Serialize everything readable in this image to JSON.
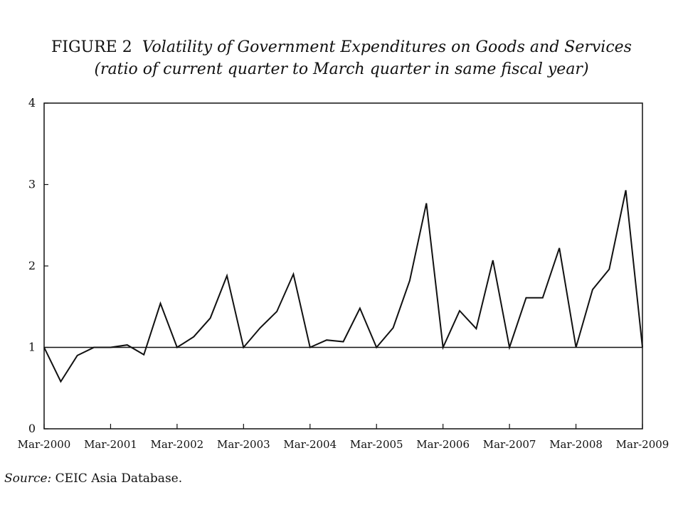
{
  "figure": {
    "label": "FIGURE 2",
    "title": "Volatility of Government Expenditures on Goods and Services",
    "subtitle": "(ratio of current quarter to March quarter in same fiscal year)"
  },
  "source": {
    "label": "Source:",
    "text": " CEIC Asia Database."
  },
  "chart_data": {
    "type": "line",
    "title": "FIGURE 2 Volatility of Government Expenditures on Goods and Services",
    "subtitle": "(ratio of current quarter to March quarter in same fiscal year)",
    "xlabel": "",
    "ylabel": "",
    "ylim": [
      0,
      4
    ],
    "yticks": [
      0,
      1,
      2,
      3,
      4
    ],
    "xtick_labels": [
      "Mar-2000",
      "Mar-2001",
      "Mar-2002",
      "Mar-2003",
      "Mar-2004",
      "Mar-2005",
      "Mar-2006",
      "Mar-2007",
      "Mar-2008",
      "Mar-2009"
    ],
    "grid": false,
    "legend": "none",
    "reference_line": 1,
    "line_color": "#111111",
    "x": [
      "Mar-2000",
      "Jun-2000",
      "Sep-2000",
      "Dec-2000",
      "Mar-2001",
      "Jun-2001",
      "Sep-2001",
      "Dec-2001",
      "Mar-2002",
      "Jun-2002",
      "Sep-2002",
      "Dec-2002",
      "Mar-2003",
      "Jun-2003",
      "Sep-2003",
      "Dec-2003",
      "Mar-2004",
      "Jun-2004",
      "Sep-2004",
      "Dec-2004",
      "Mar-2005",
      "Jun-2005",
      "Sep-2005",
      "Dec-2005",
      "Mar-2006",
      "Jun-2006",
      "Sep-2006",
      "Dec-2006",
      "Mar-2007",
      "Jun-2007",
      "Sep-2007",
      "Dec-2007",
      "Mar-2008",
      "Jun-2008",
      "Sep-2008",
      "Dec-2008",
      "Mar-2009"
    ],
    "series": [
      {
        "values": [
          1.0,
          0.58,
          0.9,
          1.0,
          1.0,
          1.03,
          0.91,
          1.54,
          1.0,
          1.13,
          1.36,
          1.88,
          1.0,
          1.24,
          1.44,
          1.9,
          1.0,
          1.09,
          1.07,
          1.48,
          1.0,
          1.24,
          1.82,
          2.77,
          1.0,
          1.45,
          1.23,
          2.07,
          1.0,
          1.61,
          1.61,
          2.22,
          1.0,
          1.71,
          1.96,
          2.93,
          1.0
        ]
      }
    ]
  }
}
